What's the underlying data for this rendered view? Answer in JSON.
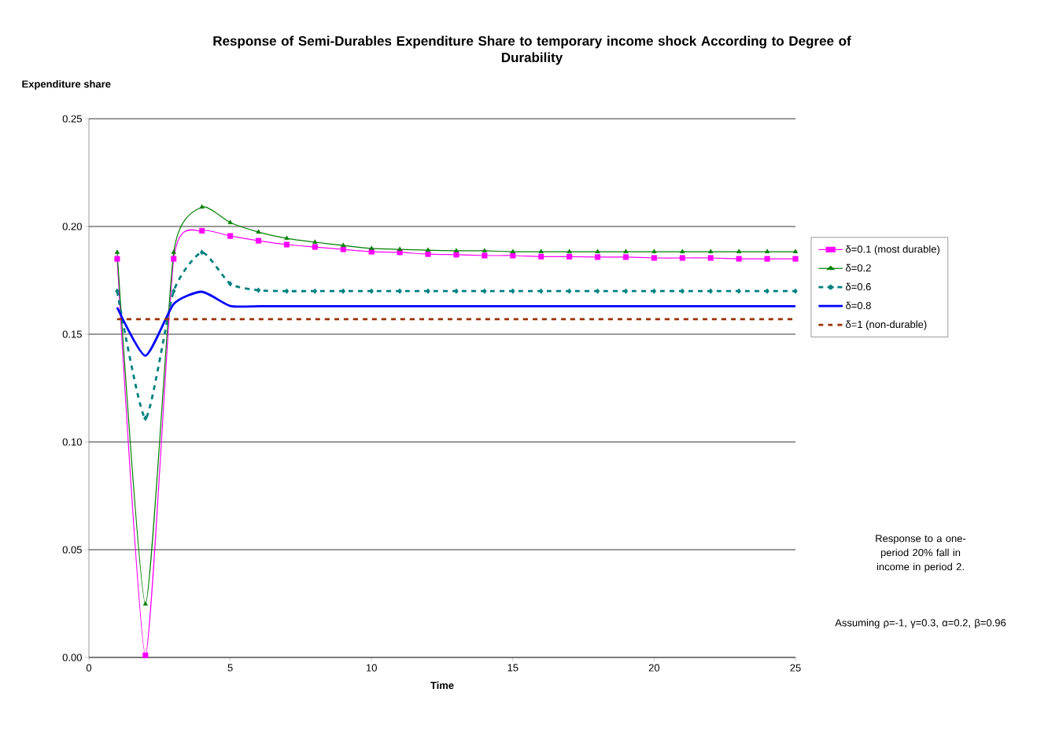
{
  "chart_data": {
    "type": "line",
    "title": "Response of Semi-Durables Expenditure Share to temporary income shock According to Degree of Durability",
    "ylabel": "Expenditure share",
    "xlabel": "Time",
    "x": [
      1,
      2,
      3,
      4,
      5,
      6,
      7,
      8,
      9,
      10,
      11,
      12,
      13,
      14,
      15,
      16,
      17,
      18,
      19,
      20,
      21,
      22,
      23,
      24,
      25
    ],
    "series": [
      {
        "name": "δ=0.1 (most durable)",
        "color": "#ff00ff",
        "marker": "square",
        "line_style": "solid",
        "values": [
          0.185,
          0.001,
          0.185,
          0.198,
          0.1956,
          0.1934,
          0.1916,
          0.1905,
          0.1894,
          0.1883,
          0.188,
          0.1872,
          0.1869,
          0.1865,
          0.1865,
          0.186,
          0.186,
          0.1858,
          0.1858,
          0.1854,
          0.1854,
          0.1854,
          0.185,
          0.185,
          0.185
        ]
      },
      {
        "name": "δ=0.2",
        "color": "#008000",
        "marker": "triangle",
        "line_style": "solid",
        "values": [
          0.188,
          0.0248,
          0.188,
          0.209,
          0.2018,
          0.1974,
          0.1945,
          0.1927,
          0.1912,
          0.1898,
          0.1894,
          0.189,
          0.1887,
          0.1887,
          0.1883,
          0.1883,
          0.1883,
          0.1883,
          0.1883,
          0.1883,
          0.1883,
          0.1883,
          0.1883,
          0.1883,
          0.1883
        ]
      },
      {
        "name": "δ=0.6",
        "color": "#008080",
        "marker": "diamond",
        "line_style": "dashed",
        "values": [
          0.17,
          0.111,
          0.17,
          0.188,
          0.1734,
          0.1704,
          0.17,
          0.17,
          0.17,
          0.17,
          0.17,
          0.17,
          0.17,
          0.17,
          0.17,
          0.17,
          0.17,
          0.17,
          0.17,
          0.17,
          0.17,
          0.17,
          0.17,
          0.17,
          0.17
        ]
      },
      {
        "name": "δ=0.8",
        "color": "#0000ff",
        "marker": "none",
        "line_style": "solid",
        "values": [
          0.1624,
          0.14,
          0.164,
          0.1697,
          0.1631,
          0.163,
          0.163,
          0.163,
          0.163,
          0.163,
          0.163,
          0.163,
          0.163,
          0.163,
          0.163,
          0.163,
          0.163,
          0.163,
          0.163,
          0.163,
          0.163,
          0.163,
          0.163,
          0.163,
          0.163
        ]
      },
      {
        "name": "δ=1  (non-durable)",
        "color": "#993300",
        "marker": "none",
        "line_style": "dashed",
        "values": [
          0.157,
          0.157,
          0.157,
          0.157,
          0.157,
          0.157,
          0.157,
          0.157,
          0.157,
          0.157,
          0.157,
          0.157,
          0.157,
          0.157,
          0.157,
          0.157,
          0.157,
          0.157,
          0.157,
          0.157,
          0.157,
          0.157,
          0.157,
          0.157,
          0.157
        ]
      }
    ],
    "xlim": [
      0,
      25
    ],
    "xticks": [
      0,
      5,
      10,
      15,
      20,
      25
    ],
    "ylim": [
      0,
      0.25
    ],
    "yticks": [
      {
        "value": 0,
        "label": "0.00"
      },
      {
        "value": 0.05,
        "label": "0.05"
      },
      {
        "value": 0.1,
        "label": "0.10"
      },
      {
        "value": 0.15,
        "label": "0.15"
      },
      {
        "value": 0.2,
        "label": "0.20"
      },
      {
        "value": 0.25,
        "label": "0.25"
      }
    ],
    "grid": "y",
    "legend": "right",
    "annotations": [
      "Response to a one-period 20% fall in income in period 2.",
      "Assuming ρ=-1, γ=0.3, α=0.2, β=0.96"
    ]
  }
}
